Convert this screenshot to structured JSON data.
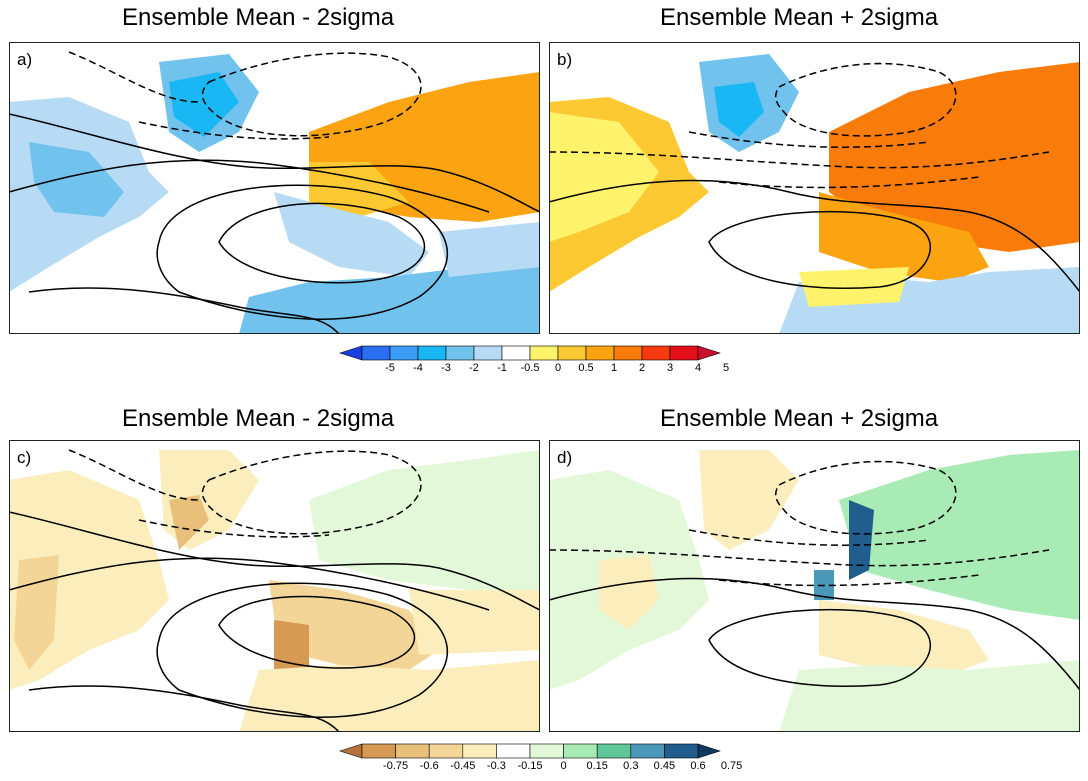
{
  "titles": {
    "a": "Ensemble Mean - 2sigma",
    "b": "Ensemble Mean + 2sigma",
    "c": "Ensemble Mean - 2sigma",
    "d": "Ensemble Mean + 2sigma"
  },
  "panel_labels": {
    "a": "a)",
    "b": "b)",
    "c": "c)",
    "d": "d)"
  },
  "colorbar_top": {
    "labels": [
      "-5",
      "-4",
      "-3",
      "-2",
      "-1",
      "-0.5",
      "0",
      "0.5",
      "1",
      "2",
      "3",
      "4",
      "5"
    ],
    "colors": [
      "#1a3fe0",
      "#2a6ff0",
      "#3d9cf5",
      "#19b8f5",
      "#72c2ee",
      "#b7daf5",
      "#ffffff",
      "#fff36b",
      "#fdc932",
      "#fca311",
      "#f97c0a",
      "#f53a12",
      "#e3101a",
      "#c8102e"
    ]
  },
  "colorbar_bottom": {
    "labels": [
      "-0.75",
      "-0.6",
      "-0.45",
      "-0.3",
      "-0.15",
      "0",
      "0.15",
      "0.3",
      "0.45",
      "0.6",
      "0.75"
    ],
    "colors": [
      "#b8733a",
      "#d69a55",
      "#e8c07a",
      "#f3d697",
      "#fbeebc",
      "#ffffff",
      "#e2f8d8",
      "#a8ebb4",
      "#5fc79a",
      "#4b97b8",
      "#215e8e",
      "#11395e"
    ]
  }
}
